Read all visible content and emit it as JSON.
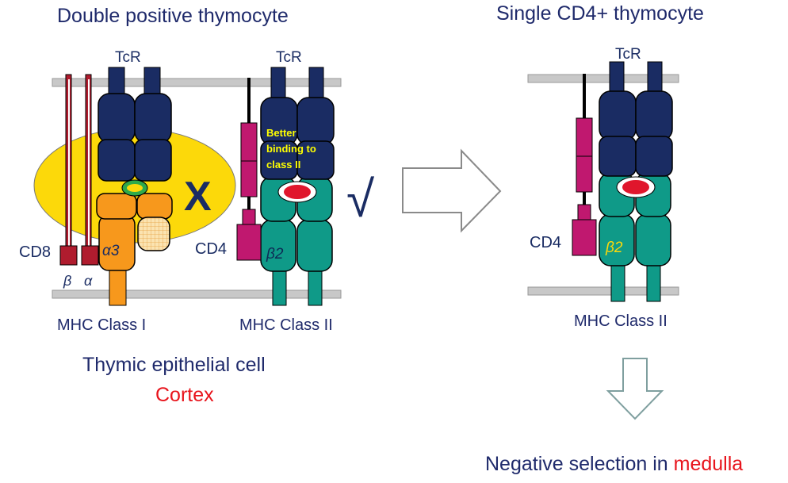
{
  "left_title": "Double positive thymocyte",
  "right_title": "Single CD4+ thymocyte",
  "tcr_label": "TcR",
  "cd8_label": "CD8",
  "cd4_label": "CD4",
  "alpha3_label": "α3",
  "beta2_label": "β2",
  "beta_label": "β",
  "alpha_label": "α",
  "x_mark": "X",
  "check_mark": "√",
  "better_binding_lines": [
    "Better",
    "binding to",
    "class II"
  ],
  "mhc1_label": "MHC Class I",
  "mhc2_label": "MHC Class II",
  "thymic_label": "Thymic epithelial cell",
  "cortex_label": "Cortex",
  "neg_selection_prefix": "Negative selection in ",
  "neg_selection_place": "medulla",
  "colors": {
    "navy": "#1a2c63",
    "teal": "#0f9a88",
    "magenta": "#c0186f",
    "darkred": "#b01c2e",
    "orange": "#f7981c",
    "yellow": "#fcd90a",
    "membrane": "#c8c8c8",
    "red_text": "#e8141c",
    "title_blue": "#1f2a6b"
  }
}
